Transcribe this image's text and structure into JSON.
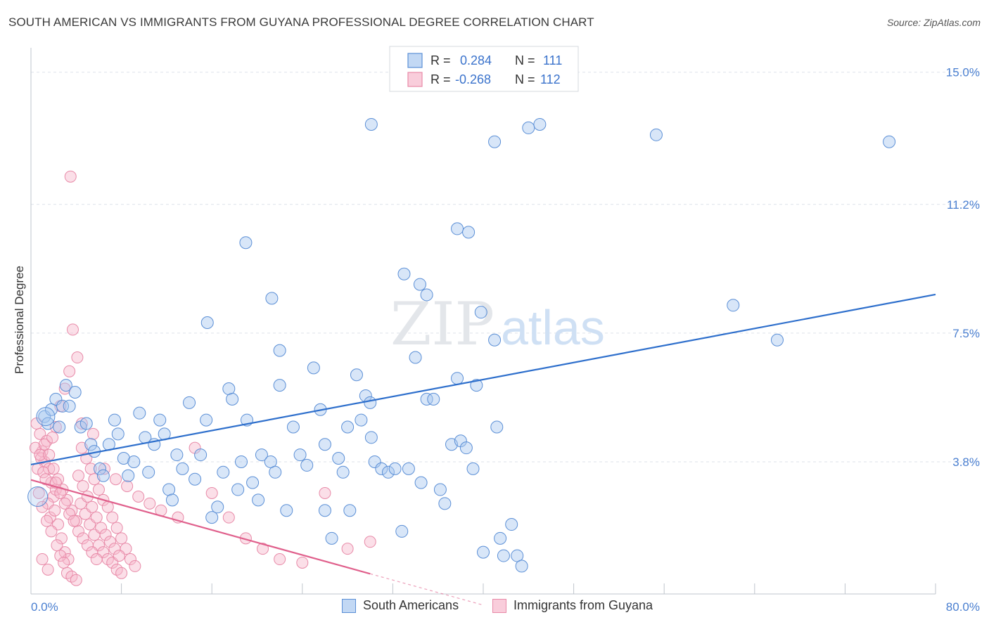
{
  "header": {
    "title": "SOUTH AMERICAN VS IMMIGRANTS FROM GUYANA PROFESSIONAL DEGREE CORRELATION CHART",
    "source": "Source: ZipAtlas.com"
  },
  "watermark": {
    "zip": "ZIP",
    "atlas": "atlas"
  },
  "colors": {
    "blue_fill": "#a8c8f0",
    "blue_stroke": "#5b8fd6",
    "blue_line": "#2e6fcc",
    "pink_fill": "#f7b8cc",
    "pink_stroke": "#e88aa8",
    "pink_line": "#e0608c",
    "tick_text": "#4a7fd0",
    "grid": "#dde2ea"
  },
  "legend_top": {
    "rows": [
      {
        "r_label": "R =",
        "r_value": "0.284",
        "n_label": "N =",
        "n_value": "111"
      },
      {
        "r_label": "R =",
        "r_value": "-0.268",
        "n_label": "N =",
        "n_value": "112"
      }
    ]
  },
  "legend_bottom": {
    "items": [
      {
        "label": "South Americans"
      },
      {
        "label": "Immigrants from Guyana"
      }
    ]
  },
  "chart_data": {
    "type": "scatter",
    "title": "SOUTH AMERICAN VS IMMIGRANTS FROM GUYANA PROFESSIONAL DEGREE CORRELATION CHART",
    "xlabel": "",
    "ylabel": "Professional Degree",
    "xlim": [
      0,
      80
    ],
    "ylim": [
      0,
      15.5
    ],
    "x_tick_labels": [
      "0.0%",
      "80.0%"
    ],
    "y_ticks": [
      3.8,
      7.5,
      11.2,
      15.0
    ],
    "y_tick_labels": [
      "3.8%",
      "7.5%",
      "11.2%",
      "15.0%"
    ],
    "grid": true,
    "series": [
      {
        "name": "South Americans",
        "r": 0.284,
        "n": 111,
        "trend": {
          "x": [
            0,
            80
          ],
          "y": [
            3.72,
            8.61
          ]
        },
        "points": [
          [
            1.2,
            5.1
          ],
          [
            1.5,
            4.9
          ],
          [
            1.8,
            5.3
          ],
          [
            2.2,
            5.6
          ],
          [
            2.5,
            4.8
          ],
          [
            2.8,
            5.4
          ],
          [
            3.1,
            6.0
          ],
          [
            3.4,
            5.4
          ],
          [
            3.9,
            5.8
          ],
          [
            4.4,
            4.8
          ],
          [
            4.9,
            4.9
          ],
          [
            5.3,
            4.3
          ],
          [
            5.6,
            4.1
          ],
          [
            6.1,
            3.6
          ],
          [
            6.4,
            3.4
          ],
          [
            6.9,
            4.3
          ],
          [
            7.4,
            5.0
          ],
          [
            7.7,
            4.6
          ],
          [
            8.2,
            3.9
          ],
          [
            8.6,
            3.4
          ],
          [
            9.1,
            3.8
          ],
          [
            9.6,
            5.2
          ],
          [
            10.1,
            4.5
          ],
          [
            10.4,
            3.5
          ],
          [
            10.9,
            4.3
          ],
          [
            11.4,
            5.0
          ],
          [
            11.8,
            4.6
          ],
          [
            12.2,
            3.0
          ],
          [
            12.5,
            2.7
          ],
          [
            12.9,
            4.0
          ],
          [
            13.4,
            3.6
          ],
          [
            14.0,
            5.5
          ],
          [
            14.5,
            3.3
          ],
          [
            15.0,
            4.0
          ],
          [
            15.5,
            5.0
          ],
          [
            16.0,
            2.2
          ],
          [
            16.5,
            2.5
          ],
          [
            17.0,
            3.5
          ],
          [
            17.5,
            5.9
          ],
          [
            17.8,
            5.6
          ],
          [
            18.3,
            3.0
          ],
          [
            18.6,
            3.8
          ],
          [
            19.1,
            5.0
          ],
          [
            19.6,
            3.2
          ],
          [
            20.1,
            2.7
          ],
          [
            20.4,
            4.0
          ],
          [
            21.2,
            3.8
          ],
          [
            21.6,
            3.5
          ],
          [
            22.0,
            7.0
          ],
          [
            22.6,
            2.4
          ],
          [
            23.2,
            4.8
          ],
          [
            23.8,
            4.0
          ],
          [
            24.4,
            3.7
          ],
          [
            25.0,
            6.5
          ],
          [
            25.6,
            5.3
          ],
          [
            26.0,
            2.4
          ],
          [
            26.6,
            1.6
          ],
          [
            27.2,
            3.9
          ],
          [
            27.6,
            3.5
          ],
          [
            28.2,
            2.4
          ],
          [
            28.8,
            6.3
          ],
          [
            29.2,
            5.0
          ],
          [
            29.6,
            5.7
          ],
          [
            30.0,
            5.5
          ],
          [
            30.4,
            3.8
          ],
          [
            31.0,
            3.6
          ],
          [
            31.6,
            3.5
          ],
          [
            32.2,
            3.6
          ],
          [
            32.8,
            1.8
          ],
          [
            33.4,
            3.6
          ],
          [
            34.0,
            6.8
          ],
          [
            34.5,
            3.2
          ],
          [
            35.0,
            5.6
          ],
          [
            35.6,
            5.6
          ],
          [
            36.2,
            3.0
          ],
          [
            36.6,
            2.6
          ],
          [
            37.2,
            4.3
          ],
          [
            37.7,
            6.2
          ],
          [
            38.0,
            4.4
          ],
          [
            38.5,
            4.2
          ],
          [
            39.1,
            3.6
          ],
          [
            39.4,
            6.0
          ],
          [
            40.0,
            1.2
          ],
          [
            41.0,
            7.3
          ],
          [
            41.8,
            1.1
          ],
          [
            42.5,
            2.0
          ],
          [
            43.0,
            1.1
          ],
          [
            15.6,
            7.8
          ],
          [
            19.0,
            10.1
          ],
          [
            21.3,
            8.5
          ],
          [
            22.0,
            6.0
          ],
          [
            26.0,
            4.3
          ],
          [
            28.0,
            4.8
          ],
          [
            33.0,
            9.2
          ],
          [
            34.4,
            8.9
          ],
          [
            35.0,
            8.6
          ],
          [
            37.7,
            10.5
          ],
          [
            38.7,
            10.4
          ],
          [
            39.8,
            8.1
          ],
          [
            30.1,
            4.5
          ],
          [
            41.2,
            4.8
          ],
          [
            43.4,
            0.8
          ],
          [
            41.5,
            1.6
          ],
          [
            44.0,
            13.4
          ],
          [
            45.0,
            13.5
          ],
          [
            41.0,
            13.0
          ],
          [
            55.3,
            13.2
          ],
          [
            62.1,
            8.3
          ],
          [
            66.0,
            7.3
          ],
          [
            75.9,
            13.0
          ],
          [
            30.1,
            13.5
          ]
        ]
      },
      {
        "name": "Immigrants from Guyana",
        "r": -0.268,
        "n": 112,
        "trend": {
          "x": [
            0,
            30
          ],
          "y": [
            3.28,
            0.58
          ]
        },
        "trend_extension": {
          "x": [
            30,
            40
          ],
          "y": [
            0.58,
            -0.32
          ]
        },
        "points": [
          [
            0.5,
            4.9
          ],
          [
            0.8,
            4.6
          ],
          [
            1.0,
            4.1
          ],
          [
            1.2,
            3.8
          ],
          [
            1.4,
            4.4
          ],
          [
            1.6,
            3.6
          ],
          [
            1.8,
            3.2
          ],
          [
            2.0,
            2.8
          ],
          [
            2.2,
            3.0
          ],
          [
            0.6,
            3.6
          ],
          [
            0.9,
            3.9
          ],
          [
            1.1,
            3.5
          ],
          [
            1.3,
            3.3
          ],
          [
            1.5,
            2.6
          ],
          [
            1.7,
            2.2
          ],
          [
            2.1,
            2.4
          ],
          [
            2.4,
            2.0
          ],
          [
            2.7,
            1.6
          ],
          [
            3.0,
            1.2
          ],
          [
            3.3,
            1.0
          ],
          [
            0.7,
            2.9
          ],
          [
            1.0,
            2.5
          ],
          [
            1.4,
            2.1
          ],
          [
            1.8,
            1.8
          ],
          [
            2.3,
            1.4
          ],
          [
            2.6,
            1.1
          ],
          [
            2.9,
            0.9
          ],
          [
            3.2,
            0.6
          ],
          [
            3.6,
            0.5
          ],
          [
            4.0,
            0.4
          ],
          [
            0.4,
            4.2
          ],
          [
            0.8,
            4.0
          ],
          [
            1.2,
            4.3
          ],
          [
            1.6,
            4.0
          ],
          [
            2.0,
            3.6
          ],
          [
            2.4,
            3.3
          ],
          [
            2.8,
            3.0
          ],
          [
            3.2,
            2.7
          ],
          [
            3.6,
            2.4
          ],
          [
            4.0,
            2.1
          ],
          [
            1.9,
            4.5
          ],
          [
            2.2,
            4.8
          ],
          [
            2.6,
            5.4
          ],
          [
            3.0,
            5.9
          ],
          [
            3.4,
            6.4
          ],
          [
            3.7,
            7.6
          ],
          [
            4.1,
            6.8
          ],
          [
            4.5,
            4.2
          ],
          [
            4.9,
            3.9
          ],
          [
            5.3,
            3.6
          ],
          [
            5.6,
            3.3
          ],
          [
            6.0,
            3.0
          ],
          [
            6.4,
            2.7
          ],
          [
            6.8,
            2.5
          ],
          [
            7.2,
            2.2
          ],
          [
            7.6,
            1.9
          ],
          [
            8.0,
            1.6
          ],
          [
            8.4,
            1.3
          ],
          [
            8.8,
            1.0
          ],
          [
            9.2,
            0.8
          ],
          [
            4.4,
            2.6
          ],
          [
            4.8,
            2.3
          ],
          [
            5.2,
            2.0
          ],
          [
            5.6,
            1.7
          ],
          [
            6.0,
            1.4
          ],
          [
            6.4,
            1.2
          ],
          [
            6.8,
            1.0
          ],
          [
            7.2,
            0.9
          ],
          [
            7.6,
            0.7
          ],
          [
            8.0,
            0.6
          ],
          [
            4.2,
            3.4
          ],
          [
            4.6,
            3.1
          ],
          [
            5.0,
            2.8
          ],
          [
            5.4,
            2.5
          ],
          [
            5.8,
            2.2
          ],
          [
            6.2,
            1.9
          ],
          [
            6.6,
            1.7
          ],
          [
            7.0,
            1.5
          ],
          [
            7.4,
            1.3
          ],
          [
            7.8,
            1.1
          ],
          [
            2.2,
            3.2
          ],
          [
            2.6,
            2.9
          ],
          [
            3.0,
            2.6
          ],
          [
            3.4,
            2.3
          ],
          [
            3.8,
            2.1
          ],
          [
            4.2,
            1.8
          ],
          [
            4.6,
            1.6
          ],
          [
            5.0,
            1.4
          ],
          [
            5.4,
            1.2
          ],
          [
            5.8,
            1.0
          ],
          [
            3.5,
            12.0
          ],
          [
            4.5,
            4.9
          ],
          [
            5.5,
            4.6
          ],
          [
            6.5,
            3.6
          ],
          [
            7.5,
            3.3
          ],
          [
            8.5,
            3.1
          ],
          [
            9.5,
            2.8
          ],
          [
            10.5,
            2.6
          ],
          [
            11.5,
            2.4
          ],
          [
            13.0,
            2.2
          ],
          [
            14.5,
            4.2
          ],
          [
            16.0,
            2.9
          ],
          [
            17.5,
            2.2
          ],
          [
            19.0,
            1.6
          ],
          [
            20.5,
            1.3
          ],
          [
            22.0,
            1.0
          ],
          [
            24.0,
            0.9
          ],
          [
            26.0,
            2.9
          ],
          [
            28.0,
            1.3
          ],
          [
            30.0,
            1.5
          ],
          [
            1.0,
            1.0
          ],
          [
            1.5,
            0.7
          ]
        ]
      }
    ]
  }
}
